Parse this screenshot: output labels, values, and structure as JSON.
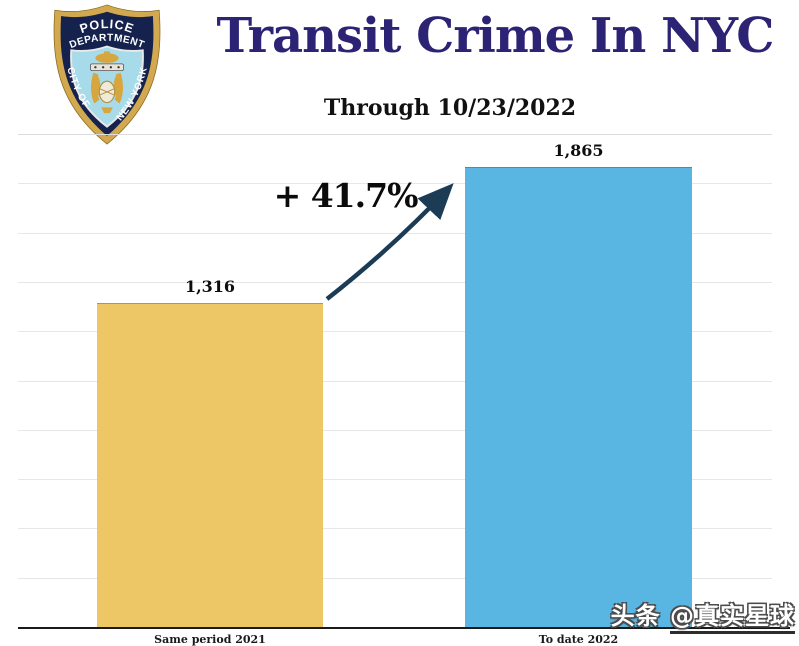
{
  "header": {
    "badge": {
      "line1": "POLICE",
      "line2": "DEPARTMENT",
      "left": "CITY OF",
      "right": "NEW YORK"
    },
    "title": "Transit Crime In NYC",
    "subtitle": "Through 10/23/2022"
  },
  "chart_data": {
    "type": "bar",
    "title": "Transit Crime In NYC",
    "subtitle": "Through 10/23/2022",
    "categories": [
      "Same period 2021",
      "To date 2022"
    ],
    "values": [
      1316,
      1865
    ],
    "value_labels": [
      "1,316",
      "1,865"
    ],
    "bar_colors": [
      "#edc765",
      "#59b5e2"
    ],
    "annotation": {
      "text": "+ 41.7%"
    },
    "xlabel": "",
    "ylabel": "",
    "ylim": [
      0,
      2000
    ],
    "gridline_interval": 200,
    "grid": true,
    "legend": "none"
  },
  "watermark": {
    "prefix": "头条 ",
    "handle": "@真实星球"
  },
  "colors": {
    "title_navy": "#2d2375",
    "arrow_navy": "#1c3b55",
    "bar_yellow": "#edc765",
    "bar_blue": "#59b5e2",
    "gridline": "#e7e7e7",
    "baseline": "#1a1a1a",
    "badge_gold": "#d2a94e",
    "badge_navy": "#15224d",
    "badge_lightblue": "#a7dbe9"
  }
}
